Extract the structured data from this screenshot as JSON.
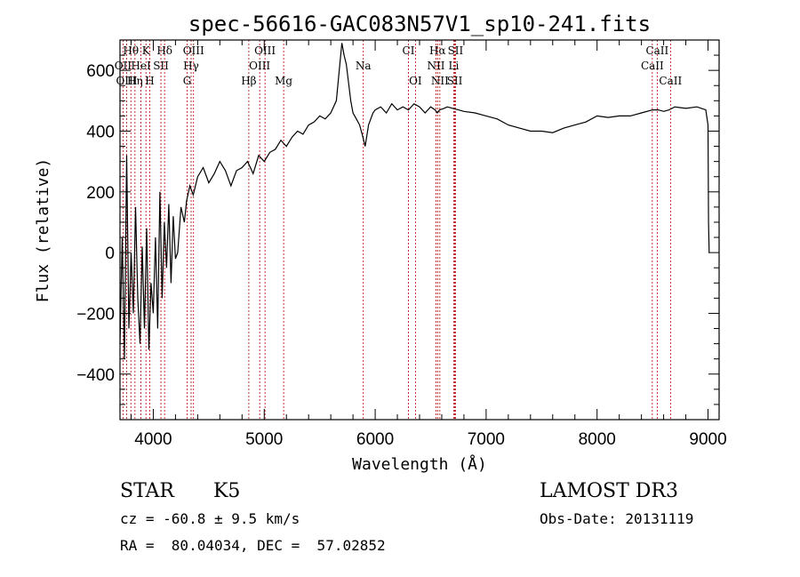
{
  "chart_data": {
    "type": "line",
    "title": "spec-56616-GAC083N57V1_sp10-241.fits",
    "xlabel": "Wavelength (Å)",
    "ylabel": "Flux (relative)",
    "xlim": [
      3700,
      9100
    ],
    "ylim": [
      -550,
      700
    ],
    "xticks": [
      4000,
      5000,
      6000,
      7000,
      8000,
      9000
    ],
    "yticks": [
      -400,
      -200,
      0,
      200,
      400,
      600
    ],
    "series": [
      {
        "name": "flux",
        "x": [
          3700,
          3720,
          3740,
          3760,
          3780,
          3800,
          3820,
          3840,
          3860,
          3880,
          3900,
          3920,
          3940,
          3960,
          3980,
          4000,
          4020,
          4040,
          4060,
          4080,
          4100,
          4120,
          4140,
          4160,
          4180,
          4200,
          4220,
          4250,
          4280,
          4300,
          4330,
          4360,
          4400,
          4450,
          4500,
          4550,
          4600,
          4650,
          4700,
          4750,
          4800,
          4850,
          4900,
          4950,
          5000,
          5050,
          5100,
          5150,
          5200,
          5250,
          5300,
          5350,
          5400,
          5450,
          5500,
          5550,
          5600,
          5650,
          5700,
          5720,
          5740,
          5760,
          5780,
          5800,
          5830,
          5860,
          5890,
          5910,
          5940,
          5980,
          6000,
          6050,
          6100,
          6150,
          6200,
          6250,
          6300,
          6350,
          6400,
          6450,
          6500,
          6540,
          6560,
          6580,
          6620,
          6650,
          6700,
          6750,
          6800,
          6900,
          7000,
          7100,
          7200,
          7300,
          7400,
          7500,
          7600,
          7700,
          7800,
          7900,
          8000,
          8100,
          8200,
          8300,
          8400,
          8500,
          8550,
          8600,
          8650,
          8700,
          8800,
          8900,
          8980,
          9000,
          9005,
          9010
        ],
        "y": [
          -300,
          50,
          -350,
          320,
          -250,
          0,
          -200,
          150,
          -150,
          -300,
          20,
          -250,
          80,
          -320,
          -100,
          -200,
          50,
          -250,
          200,
          -150,
          100,
          -50,
          160,
          -100,
          120,
          -20,
          0,
          150,
          100,
          170,
          220,
          190,
          250,
          280,
          230,
          260,
          300,
          270,
          220,
          270,
          280,
          300,
          260,
          320,
          300,
          330,
          340,
          370,
          350,
          380,
          400,
          390,
          420,
          430,
          450,
          440,
          460,
          500,
          690,
          650,
          620,
          560,
          500,
          460,
          440,
          420,
          380,
          350,
          420,
          460,
          470,
          480,
          460,
          490,
          470,
          480,
          470,
          490,
          480,
          460,
          480,
          470,
          460,
          470,
          475,
          480,
          475,
          470,
          465,
          460,
          450,
          440,
          420,
          410,
          400,
          400,
          395,
          410,
          420,
          430,
          450,
          445,
          450,
          450,
          460,
          470,
          470,
          465,
          470,
          480,
          475,
          480,
          470,
          420,
          100,
          0
        ]
      }
    ],
    "lines_top": [
      {
        "label": "Hθ",
        "x": 3798
      },
      {
        "label": "K",
        "x": 3934
      },
      {
        "label": "Hδ",
        "x": 4102
      },
      {
        "label": "OIII",
        "x": 4363
      },
      {
        "label": "OIII",
        "x": 5007
      },
      {
        "label": "CI",
        "x": 6300
      },
      {
        "label": "Hα",
        "x": 6563
      },
      {
        "label": "SII",
        "x": 6724
      },
      {
        "label": "CaII",
        "x": 8542
      }
    ],
    "lines_mid": [
      {
        "label": "OII",
        "x": 3727
      },
      {
        "label": "HeI",
        "x": 3889
      },
      {
        "label": "SII",
        "x": 4069
      },
      {
        "label": "Hγ",
        "x": 4341
      },
      {
        "label": "OIII",
        "x": 4959
      },
      {
        "label": "Na",
        "x": 5893
      },
      {
        "label": "NII",
        "x": 6548
      },
      {
        "label": "Li",
        "x": 6708
      },
      {
        "label": "CaII",
        "x": 8498
      }
    ],
    "lines_low": [
      {
        "label": "OIII",
        "x": 3760
      },
      {
        "label": "Hη",
        "x": 3835
      },
      {
        "label": "H",
        "x": 3968
      },
      {
        "label": "G",
        "x": 4305
      },
      {
        "label": "Hβ",
        "x": 4861
      },
      {
        "label": "Mg",
        "x": 5175
      },
      {
        "label": "OI",
        "x": 6363
      },
      {
        "label": "NII",
        "x": 6583
      },
      {
        "label": "SII",
        "x": 6717
      },
      {
        "label": "CaII",
        "x": 8662
      }
    ]
  },
  "info": {
    "object_type": "STAR",
    "subclass": "K5",
    "survey": "LAMOST DR3",
    "redshift": "cz = -60.8 ± 9.5 km/s",
    "obs_date": "Obs-Date: 20131119",
    "coords": "RA =  80.04034, DEC =  57.02852"
  }
}
